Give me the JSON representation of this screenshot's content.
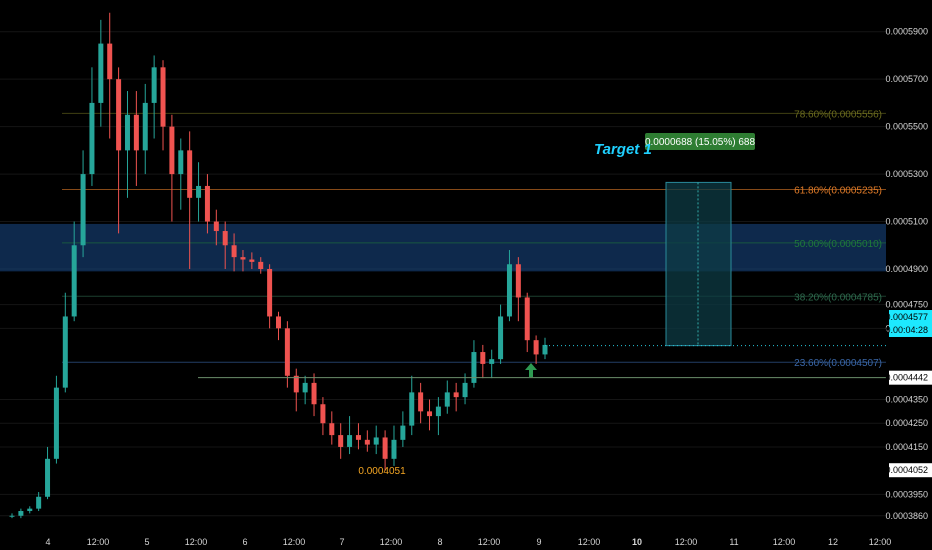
{
  "chart_data": {
    "type": "candlestick",
    "ylim": [
      0.00038,
      0.0006
    ],
    "y_ticks": [
      "0.0005900",
      "0.0005700",
      "0.0005500",
      "0.0005300",
      "0.0005100",
      "0.0004900",
      "0.0004750",
      "0.0004650",
      "0.0004350",
      "0.0004250",
      "0.0004150",
      "0.0003950",
      "0.0003860"
    ],
    "x_ticks": [
      "4",
      "12:00",
      "5",
      "12:00",
      "6",
      "12:00",
      "7",
      "12:00",
      "8",
      "12:00",
      "9",
      "12:00",
      "10",
      "12:00",
      "11",
      "12:00",
      "12",
      "12:00"
    ],
    "bold_x_ticks": [
      "10"
    ],
    "fib_levels": [
      {
        "label": "78.60%(0.0005556)",
        "value": 0.0005556,
        "color": "#6b6b1e"
      },
      {
        "label": "61.80%(0.0005235)",
        "value": 0.0005235,
        "color": "#e07b28"
      },
      {
        "label": "50.00%(0.0005010)",
        "value": 0.000501,
        "color": "#1f7a3a"
      },
      {
        "label": "38.20%(0.0004785)",
        "value": 0.0004785,
        "color": "#2e6b4e"
      },
      {
        "label": "23.60%(0.0004507)",
        "value": 0.0004507,
        "color": "#3a67a8"
      }
    ],
    "zone": {
      "from": 0.000489,
      "to": 0.000509
    },
    "support": {
      "value": 0.0004442,
      "label": "0.0004442"
    },
    "low_marker": {
      "value": 0.0004052,
      "label": "0.0004052"
    },
    "low_annotation": "0.0004051",
    "current": {
      "price": "0.0004577",
      "countdown": "0.00:04:28"
    },
    "target": {
      "title": "Target 1",
      "badge": "0.0000688 (15.05%) 688"
    },
    "candles": [
      [
        0.000386,
        0.000386,
        0.000387,
        0.000385
      ],
      [
        0.000386,
        0.000388,
        0.000389,
        0.000385
      ],
      [
        0.000388,
        0.000389,
        0.00039,
        0.000387
      ],
      [
        0.000389,
        0.000394,
        0.000396,
        0.000388
      ],
      [
        0.000394,
        0.00041,
        0.000415,
        0.000393
      ],
      [
        0.00041,
        0.00044,
        0.000445,
        0.000408
      ],
      [
        0.00044,
        0.00047,
        0.00048,
        0.000438
      ],
      [
        0.00047,
        0.0005,
        0.00051,
        0.000468
      ],
      [
        0.0005,
        0.00053,
        0.00054,
        0.000495
      ],
      [
        0.00053,
        0.00056,
        0.000575,
        0.000525
      ],
      [
        0.00056,
        0.000585,
        0.000595,
        0.00055
      ],
      [
        0.000585,
        0.00057,
        0.000598,
        0.000545
      ],
      [
        0.00057,
        0.00054,
        0.000575,
        0.000505
      ],
      [
        0.00054,
        0.000555,
        0.000565,
        0.00052
      ],
      [
        0.000555,
        0.00054,
        0.000565,
        0.000525
      ],
      [
        0.00054,
        0.00056,
        0.000568,
        0.00053
      ],
      [
        0.00056,
        0.000575,
        0.00058,
        0.000545
      ],
      [
        0.000575,
        0.00055,
        0.000578,
        0.00054
      ],
      [
        0.00055,
        0.00053,
        0.000555,
        0.00051
      ],
      [
        0.00053,
        0.00054,
        0.000545,
        0.000515
      ],
      [
        0.00054,
        0.00052,
        0.000548,
        0.00049
      ],
      [
        0.00052,
        0.000525,
        0.000535,
        0.00051
      ],
      [
        0.000525,
        0.00051,
        0.00053,
        0.000505
      ],
      [
        0.00051,
        0.000506,
        0.000515,
        0.0005
      ],
      [
        0.000506,
        0.0005,
        0.00051,
        0.00049
      ],
      [
        0.0005,
        0.000495,
        0.000505,
        0.000489
      ],
      [
        0.000495,
        0.000494,
        0.000498,
        0.000489
      ],
      [
        0.000494,
        0.000493,
        0.000497,
        0.00049
      ],
      [
        0.000493,
        0.00049,
        0.000495,
        0.000488
      ],
      [
        0.00049,
        0.00047,
        0.000492,
        0.000465
      ],
      [
        0.00047,
        0.000465,
        0.000472,
        0.00046
      ],
      [
        0.000465,
        0.000445,
        0.000468,
        0.00044
      ],
      [
        0.000445,
        0.000438,
        0.000448,
        0.00043
      ],
      [
        0.000438,
        0.000442,
        0.000445,
        0.000433
      ],
      [
        0.000442,
        0.000433,
        0.000446,
        0.000428
      ],
      [
        0.000433,
        0.000425,
        0.000436,
        0.00042
      ],
      [
        0.000425,
        0.00042,
        0.00043,
        0.000416
      ],
      [
        0.00042,
        0.000415,
        0.000425,
        0.00041
      ],
      [
        0.000415,
        0.00042,
        0.000428,
        0.000412
      ],
      [
        0.00042,
        0.000418,
        0.000425,
        0.000414
      ],
      [
        0.000418,
        0.000416,
        0.000422,
        0.000413
      ],
      [
        0.000416,
        0.000419,
        0.000424,
        0.000412
      ],
      [
        0.000419,
        0.00041,
        0.000422,
        0.000405
      ],
      [
        0.00041,
        0.000418,
        0.000424,
        0.000407
      ],
      [
        0.000418,
        0.000424,
        0.00043,
        0.000415
      ],
      [
        0.000424,
        0.000438,
        0.000445,
        0.00042
      ],
      [
        0.000438,
        0.00043,
        0.000442,
        0.000425
      ],
      [
        0.00043,
        0.000428,
        0.000435,
        0.000422
      ],
      [
        0.000428,
        0.000432,
        0.000436,
        0.00042
      ],
      [
        0.000432,
        0.000438,
        0.000443,
        0.000429
      ],
      [
        0.000438,
        0.000436,
        0.000442,
        0.00043
      ],
      [
        0.000436,
        0.000442,
        0.000446,
        0.000433
      ],
      [
        0.000442,
        0.000455,
        0.00046,
        0.00044
      ],
      [
        0.000455,
        0.00045,
        0.000458,
        0.000444
      ],
      [
        0.00045,
        0.000452,
        0.000456,
        0.000444
      ],
      [
        0.000452,
        0.00047,
        0.000475,
        0.00045
      ],
      [
        0.00047,
        0.000492,
        0.000498,
        0.000468
      ],
      [
        0.000492,
        0.000478,
        0.000495,
        0.000468
      ],
      [
        0.000478,
        0.00046,
        0.00048,
        0.000455
      ],
      [
        0.00046,
        0.000454,
        0.000462,
        0.00045
      ],
      [
        0.000454,
        0.000458,
        0.000461,
        0.000452
      ]
    ]
  }
}
